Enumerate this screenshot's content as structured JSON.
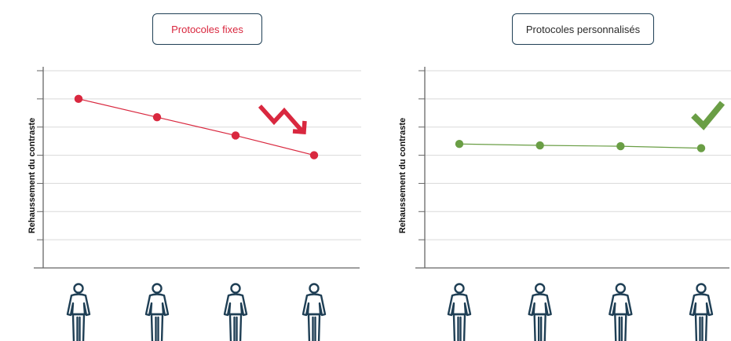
{
  "colors": {
    "fixed": "#d9283f",
    "personalized": "#6a9e45",
    "axis": "#666666",
    "grid": "#d9d9d9",
    "person": "#1f3f55",
    "box_border": "#1f3f55",
    "right_title_text": "#2a2a2a"
  },
  "icons": {
    "patient": "person-icon",
    "trend": "down-trend-arrow-icon",
    "check": "check-icon"
  },
  "chart_data": [
    {
      "type": "line",
      "title": "Protocoles fixes",
      "ylabel": "Rehaussement du contraste",
      "xlabel": "",
      "x": [
        1,
        2,
        3,
        4
      ],
      "ylim": [
        0,
        7
      ],
      "y_ticks": [
        1,
        2,
        3,
        4,
        5,
        6,
        7
      ],
      "grid": true,
      "series": [
        {
          "values": [
            6.0,
            5.35,
            4.7,
            4.0
          ],
          "color": "#d9283f"
        }
      ]
    },
    {
      "type": "line",
      "title": "Protocoles personnalisés",
      "ylabel": "Rehaussement du contraste",
      "xlabel": "",
      "x": [
        1,
        2,
        3,
        4
      ],
      "ylim": [
        0,
        7
      ],
      "y_ticks": [
        1,
        2,
        3,
        4,
        5,
        6,
        7
      ],
      "grid": true,
      "series": [
        {
          "values": [
            4.4,
            4.35,
            4.32,
            4.25
          ],
          "color": "#6a9e45"
        }
      ]
    }
  ]
}
